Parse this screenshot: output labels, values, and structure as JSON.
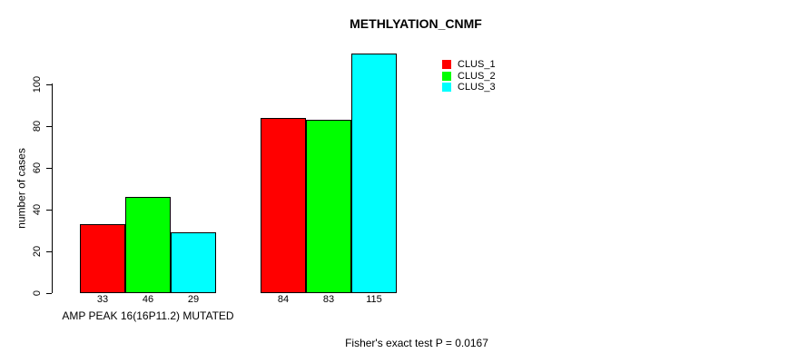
{
  "page": {
    "background": "#ffffff",
    "text_color": "#000000"
  },
  "chart_data": {
    "type": "bar",
    "title": "METHLYATION_CNMF",
    "ylabel": "number of cases",
    "group_labels": [
      "AMP PEAK 16(16P11.2) MUTATED",
      ""
    ],
    "annotation": "Fisher's exact test P = 0.0167",
    "series": [
      {
        "name": "CLUS_1",
        "color": "#ff0000",
        "values": [
          33,
          84
        ]
      },
      {
        "name": "CLUS_2",
        "color": "#00ff00",
        "values": [
          46,
          83
        ]
      },
      {
        "name": "CLUS_3",
        "color": "#00ffff",
        "values": [
          29,
          115
        ]
      }
    ],
    "bar_value_labels": [
      [
        33,
        46,
        29
      ],
      [
        84,
        83,
        115
      ]
    ],
    "yticks": [
      0,
      20,
      40,
      60,
      80,
      100
    ],
    "ylim": [
      0,
      115
    ],
    "grid": false,
    "legend_position": "top-right",
    "legend": [
      "CLUS_1",
      "CLUS_2",
      "CLUS_3"
    ],
    "bar_border_color": "#000000"
  }
}
